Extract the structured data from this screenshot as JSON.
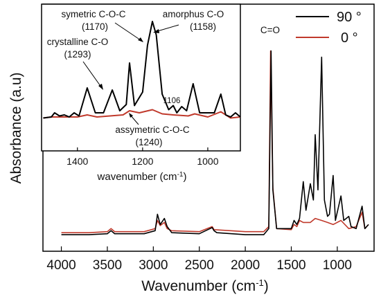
{
  "chart_data": [
    {
      "type": "line",
      "xlabel": "Wavenumber (cm",
      "xlabel_sup": "-1",
      "xlabel_end": ")",
      "ylabel": "Absorbance (a.u)",
      "xlim": [
        4200,
        600
      ],
      "x_reversed": true,
      "xticks": [
        4000,
        3500,
        3000,
        2500,
        2000,
        1500,
        1000
      ],
      "ylim": [
        0,
        1
      ],
      "yticks_shown": false,
      "legend_position": "top-right",
      "series": [
        {
          "name": "90 °",
          "color": "#000000",
          "points": [
            [
              4000,
              0.03
            ],
            [
              3700,
              0.03
            ],
            [
              3500,
              0.035
            ],
            [
              3460,
              0.05
            ],
            [
              3420,
              0.035
            ],
            [
              3100,
              0.035
            ],
            [
              2980,
              0.05
            ],
            [
              2955,
              0.13
            ],
            [
              2925,
              0.08
            ],
            [
              2880,
              0.11
            ],
            [
              2850,
              0.07
            ],
            [
              2800,
              0.04
            ],
            [
              2500,
              0.035
            ],
            [
              2360,
              0.065
            ],
            [
              2340,
              0.05
            ],
            [
              2310,
              0.04
            ],
            [
              2000,
              0.03
            ],
            [
              1800,
              0.03
            ],
            [
              1745,
              0.06
            ],
            [
              1720,
              0.93
            ],
            [
              1700,
              0.25
            ],
            [
              1660,
              0.06
            ],
            [
              1500,
              0.06
            ],
            [
              1470,
              0.1
            ],
            [
              1440,
              0.08
            ],
            [
              1410,
              0.11
            ],
            [
              1370,
              0.29
            ],
            [
              1340,
              0.15
            ],
            [
              1293,
              0.28
            ],
            [
              1260,
              0.2
            ],
            [
              1240,
              0.52
            ],
            [
              1210,
              0.25
            ],
            [
              1170,
              0.9
            ],
            [
              1140,
              0.2
            ],
            [
              1106,
              0.12
            ],
            [
              1085,
              0.13
            ],
            [
              1045,
              0.32
            ],
            [
              1020,
              0.1
            ],
            [
              960,
              0.22
            ],
            [
              930,
              0.1
            ],
            [
              875,
              0.12
            ],
            [
              850,
              0.07
            ],
            [
              795,
              0.06
            ],
            [
              730,
              0.17
            ],
            [
              700,
              0.06
            ],
            [
              660,
              0.08
            ]
          ]
        },
        {
          "name": "0 °",
          "color": "#c0392b",
          "points": [
            [
              4000,
              0.04
            ],
            [
              3700,
              0.04
            ],
            [
              3500,
              0.045
            ],
            [
              3460,
              0.06
            ],
            [
              3420,
              0.045
            ],
            [
              3100,
              0.045
            ],
            [
              2980,
              0.06
            ],
            [
              2955,
              0.1
            ],
            [
              2925,
              0.075
            ],
            [
              2880,
              0.09
            ],
            [
              2850,
              0.06
            ],
            [
              2800,
              0.05
            ],
            [
              2500,
              0.045
            ],
            [
              2360,
              0.07
            ],
            [
              2340,
              0.055
            ],
            [
              2000,
              0.045
            ],
            [
              1800,
              0.045
            ],
            [
              1745,
              0.07
            ],
            [
              1725,
              0.93
            ],
            [
              1700,
              0.26
            ],
            [
              1660,
              0.06
            ],
            [
              1500,
              0.055
            ],
            [
              1470,
              0.08
            ],
            [
              1440,
              0.07
            ],
            [
              1410,
              0.1
            ],
            [
              1370,
              0.09
            ],
            [
              1293,
              0.09
            ],
            [
              1240,
              0.11
            ],
            [
              1170,
              0.1
            ],
            [
              1106,
              0.09
            ],
            [
              1045,
              0.08
            ],
            [
              960,
              0.1
            ],
            [
              875,
              0.06
            ],
            [
              795,
              0.07
            ],
            [
              730,
              0.14
            ],
            [
              700,
              0.06
            ],
            [
              660,
              0.08
            ]
          ]
        }
      ],
      "annotations": [
        {
          "text": "C=O",
          "x": 1720
        }
      ]
    },
    {
      "type": "line",
      "inset": true,
      "xlabel": "wavenumber (cm",
      "xlabel_sup": "-1",
      "xlabel_end": ")",
      "xlim": [
        1510,
        900
      ],
      "x_reversed": true,
      "xticks": [
        1400,
        1200,
        1000
      ],
      "ylim": [
        0,
        1
      ],
      "series": [
        {
          "name": "90 °",
          "color": "#000000",
          "points": [
            [
              1505,
              0.05
            ],
            [
              1480,
              0.06
            ],
            [
              1470,
              0.1
            ],
            [
              1455,
              0.07
            ],
            [
              1440,
              0.08
            ],
            [
              1425,
              0.06
            ],
            [
              1410,
              0.1
            ],
            [
              1395,
              0.07
            ],
            [
              1370,
              0.34
            ],
            [
              1345,
              0.1
            ],
            [
              1320,
              0.1
            ],
            [
              1293,
              0.32
            ],
            [
              1270,
              0.12
            ],
            [
              1250,
              0.18
            ],
            [
              1240,
              0.58
            ],
            [
              1225,
              0.17
            ],
            [
              1200,
              0.3
            ],
            [
              1185,
              0.75
            ],
            [
              1170,
              0.98
            ],
            [
              1158,
              0.85
            ],
            [
              1140,
              0.28
            ],
            [
              1120,
              0.13
            ],
            [
              1106,
              0.17
            ],
            [
              1095,
              0.1
            ],
            [
              1080,
              0.16
            ],
            [
              1065,
              0.12
            ],
            [
              1045,
              0.38
            ],
            [
              1025,
              0.1
            ],
            [
              980,
              0.1
            ],
            [
              960,
              0.28
            ],
            [
              945,
              0.08
            ],
            [
              930,
              0.06
            ],
            [
              915,
              0.1
            ],
            [
              900,
              0.06
            ]
          ]
        },
        {
          "name": "0 °",
          "color": "#c0392b",
          "points": [
            [
              1505,
              0.05
            ],
            [
              1480,
              0.06
            ],
            [
              1460,
              0.06
            ],
            [
              1400,
              0.06
            ],
            [
              1370,
              0.08
            ],
            [
              1340,
              0.06
            ],
            [
              1300,
              0.07
            ],
            [
              1260,
              0.08
            ],
            [
              1240,
              0.12
            ],
            [
              1210,
              0.1
            ],
            [
              1170,
              0.13
            ],
            [
              1140,
              0.09
            ],
            [
              1106,
              0.08
            ],
            [
              1060,
              0.07
            ],
            [
              1040,
              0.09
            ],
            [
              1000,
              0.06
            ],
            [
              960,
              0.11
            ],
            [
              930,
              0.05
            ],
            [
              900,
              0.06
            ]
          ]
        }
      ],
      "annotations": [
        {
          "text": "symetric C-O-C",
          "value": "(1170)",
          "x": 1170
        },
        {
          "text": "amorphus C-O",
          "value": "(1158)",
          "x": 1158
        },
        {
          "text": "crystalline C-O",
          "value": "(1293)",
          "x": 1293
        },
        {
          "text": "1106",
          "x": 1106
        },
        {
          "text": "assymetric  C-O-C",
          "value": "(1240)",
          "x": 1240
        }
      ]
    }
  ]
}
